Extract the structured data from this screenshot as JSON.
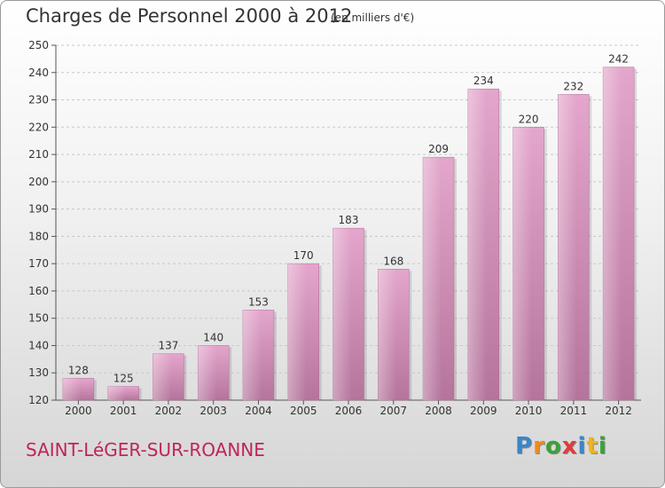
{
  "chart_data": {
    "type": "bar",
    "title": "Charges de Personnel 2000 à 2012",
    "subtitle": "(en milliers d'€)",
    "categories": [
      "2000",
      "2001",
      "2002",
      "2003",
      "2004",
      "2005",
      "2006",
      "2007",
      "2008",
      "2009",
      "2010",
      "2011",
      "2012"
    ],
    "values": [
      128,
      125,
      137,
      140,
      153,
      170,
      183,
      168,
      209,
      234,
      220,
      232,
      242
    ],
    "ylim": [
      120,
      250
    ],
    "yticks": [
      120,
      130,
      140,
      150,
      160,
      170,
      180,
      190,
      200,
      210,
      220,
      230,
      240,
      250
    ],
    "grid": true,
    "bar_color": "#d98fb9",
    "bar_color_dark": "#b8709c"
  },
  "commune": "SAINT-LéGER-SUR-ROANNE",
  "logo": {
    "letters": [
      "P",
      "r",
      "o",
      "x",
      "i",
      "t",
      "i"
    ],
    "colors": [
      "#3a86c8",
      "#f08a1c",
      "#3aa23a",
      "#e23a3a",
      "#3a86c8",
      "#f0b41c",
      "#3aa23a"
    ]
  }
}
